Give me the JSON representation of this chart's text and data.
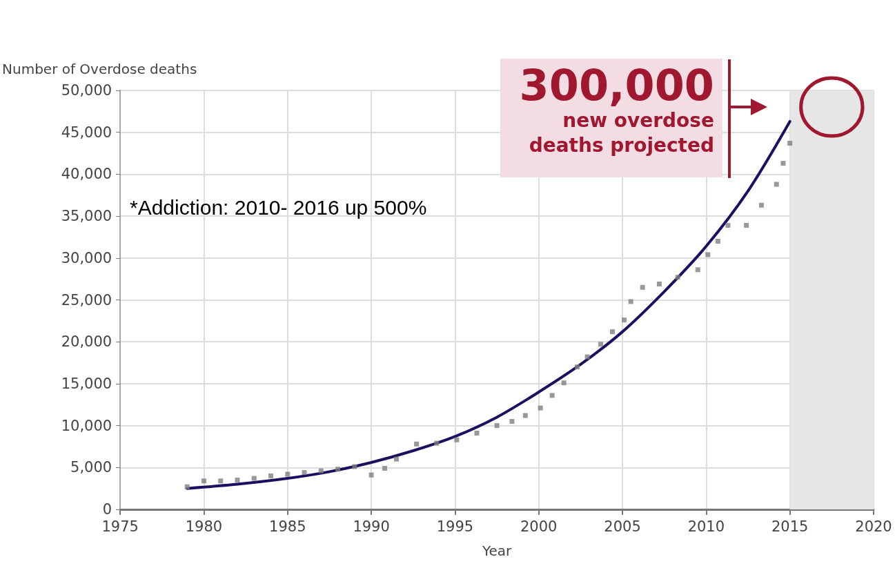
{
  "chart_data": {
    "type": "scatter",
    "xlabel": "Year",
    "ylabel": "Number of Overdose deaths",
    "xlim": [
      1975,
      2020
    ],
    "xticks": [
      1975,
      1980,
      1985,
      1990,
      1995,
      2000,
      2005,
      2010,
      2015,
      2020
    ],
    "ylim": [
      0,
      50000
    ],
    "yticks": [
      {
        "value": 0,
        "label": "0"
      },
      {
        "value": 5000,
        "label": "5,000"
      },
      {
        "value": 10000,
        "label": "10,000"
      },
      {
        "value": 15000,
        "label": "15,000"
      },
      {
        "value": 20000,
        "label": "20,000"
      },
      {
        "value": 25000,
        "label": "25,000"
      },
      {
        "value": 30000,
        "label": "30,000"
      },
      {
        "value": 35000,
        "label": "35,000"
      },
      {
        "value": 40000,
        "label": "40,000"
      },
      {
        "value": 45000,
        "label": "45,000"
      },
      {
        "value": 50000,
        "label": "50,000"
      }
    ],
    "grid": true,
    "marker": "square",
    "series": [
      {
        "color": "#808080",
        "x": [
          1979,
          1980,
          1981,
          1982,
          1983,
          1984,
          1985,
          1986,
          1987,
          1988,
          1989,
          1990,
          1990.8,
          1991.5,
          1992.7,
          1993.9,
          1995.1,
          1996.3,
          1997.5,
          1998.4,
          1999.2,
          2000.1,
          2000.8,
          2001.5,
          2002.3,
          2002.9,
          2003.7,
          2004.4,
          2005.1,
          2005.5,
          2006.2,
          2007.2,
          2008.3,
          2009.5,
          2010.1,
          2010.7,
          2011.3,
          2012.4,
          2013.3,
          2014.2,
          2014.6,
          2015
        ],
        "values": [
          2700,
          3400,
          3400,
          3500,
          3700,
          4000,
          4200,
          4400,
          4600,
          4800,
          5100,
          4100,
          4900,
          6000,
          7800,
          7900,
          8300,
          9100,
          10000,
          10500,
          11200,
          12100,
          13600,
          15100,
          17000,
          18200,
          19700,
          21200,
          22600,
          24800,
          26500,
          26900,
          27700,
          28600,
          30400,
          32000,
          33900,
          33900,
          36300,
          38800,
          41300,
          43700
        ]
      },
      {
        "type": "line",
        "color": "#1a1060",
        "marker": "none",
        "x": [
          1979,
          1982,
          1985,
          1987.5,
          1990,
          1992.5,
          1995,
          1997.5,
          2000,
          2002.5,
          2005,
          2007.5,
          2010,
          2012.5,
          2015
        ],
        "values": [
          2500,
          3000,
          3700,
          4500,
          5600,
          7000,
          8700,
          11000,
          14000,
          17300,
          21200,
          26000,
          31400,
          38000,
          46300
        ]
      }
    ],
    "bands": [
      {
        "axis": "x",
        "from": 2015,
        "to": 2020,
        "color": "#e6e6e6"
      }
    ],
    "annotations": [
      "300,000",
      "new overdose deaths projected",
      "*Addiction: 2010- 2016 up 500%"
    ]
  }
}
